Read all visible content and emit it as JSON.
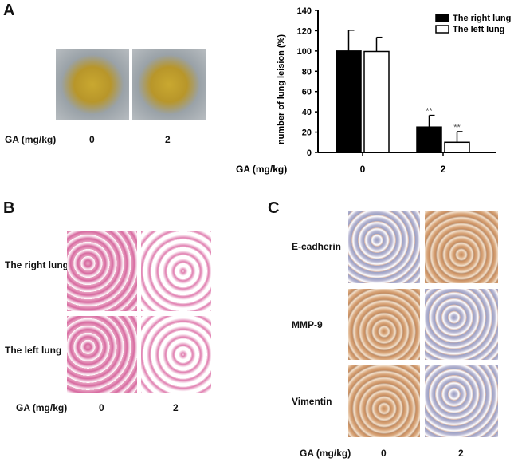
{
  "panels": {
    "a": "A",
    "b": "B",
    "c": "C"
  },
  "panel_a": {
    "xlabel": "GA (mg/kg)",
    "doses": [
      "0",
      "2"
    ]
  },
  "panel_b": {
    "rows": [
      "The right lung",
      "The left lung"
    ],
    "xlabel": "GA (mg/kg)",
    "doses": [
      "0",
      "2"
    ]
  },
  "panel_c": {
    "rows": [
      "E-cadherin",
      "MMP-9",
      "Vimentin"
    ],
    "xlabel": "GA (mg/kg)",
    "doses": [
      "0",
      "2"
    ]
  },
  "chart_data": {
    "type": "bar",
    "title": "",
    "xlabel": "GA (mg/kg)",
    "ylabel": "number of lung leision (%)",
    "categories": [
      "0",
      "2"
    ],
    "ylim": [
      0,
      140
    ],
    "yticks": [
      "0",
      "20",
      "40",
      "60",
      "80",
      "100",
      "120",
      "140"
    ],
    "legend_position": "top-right",
    "series": [
      {
        "name": "The right lung",
        "color": "#000000",
        "values": [
          100,
          25
        ],
        "errors": [
          20.5,
          11.5
        ],
        "annotations": [
          "",
          "**"
        ]
      },
      {
        "name": "The left lung",
        "color": "#ffffff",
        "values": [
          99.5,
          10
        ],
        "errors": [
          14,
          10.5
        ],
        "annotations": [
          "",
          "**"
        ]
      }
    ]
  }
}
